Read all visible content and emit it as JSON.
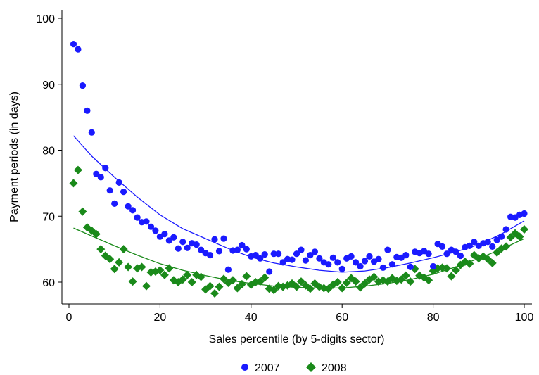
{
  "chart_data": {
    "type": "scatter",
    "title": "",
    "xlabel": "Sales percentile (by 5-digits sector)",
    "ylabel": "Payment periods (in days)",
    "xlim": [
      0,
      100
    ],
    "ylim": [
      57.5,
      101
    ],
    "xticks": [
      0,
      20,
      40,
      60,
      80,
      100
    ],
    "yticks": [
      60,
      70,
      80,
      90,
      100
    ],
    "xtick_labels": [
      "0",
      "20",
      "40",
      "60",
      "80",
      "100"
    ],
    "ytick_labels": [
      "60",
      "70",
      "80",
      "90",
      "100"
    ],
    "grid": false,
    "legend": "bottom",
    "series": [
      {
        "name": "2007",
        "marker": "circle",
        "color": "#1a1aff",
        "points": [
          [
            1,
            96.1
          ],
          [
            2,
            95.3
          ],
          [
            3,
            89.8
          ],
          [
            4,
            86.0
          ],
          [
            5,
            82.7
          ],
          [
            6,
            76.4
          ],
          [
            7,
            75.9
          ],
          [
            8,
            77.3
          ],
          [
            9,
            73.9
          ],
          [
            10,
            71.9
          ],
          [
            11,
            75.1
          ],
          [
            12,
            73.7
          ],
          [
            13,
            71.5
          ],
          [
            14,
            70.9
          ],
          [
            15,
            69.8
          ],
          [
            16,
            69.1
          ],
          [
            17,
            69.2
          ],
          [
            18,
            68.4
          ],
          [
            19,
            67.8
          ],
          [
            20,
            66.9
          ],
          [
            21,
            67.3
          ],
          [
            22,
            66.3
          ],
          [
            23,
            66.8
          ],
          [
            24,
            65.1
          ],
          [
            25,
            66.1
          ],
          [
            26,
            65.2
          ],
          [
            27,
            65.9
          ],
          [
            28,
            65.7
          ],
          [
            29,
            64.9
          ],
          [
            30,
            64.4
          ],
          [
            31,
            64.1
          ],
          [
            32,
            66.5
          ],
          [
            33,
            64.7
          ],
          [
            34,
            66.6
          ],
          [
            35,
            61.9
          ],
          [
            36,
            64.8
          ],
          [
            37,
            64.9
          ],
          [
            38,
            65.6
          ],
          [
            39,
            65.0
          ],
          [
            40,
            63.9
          ],
          [
            41,
            64.1
          ],
          [
            42,
            63.6
          ],
          [
            43,
            64.2
          ],
          [
            44,
            61.6
          ],
          [
            45,
            64.3
          ],
          [
            46,
            64.3
          ],
          [
            47,
            63.0
          ],
          [
            48,
            63.5
          ],
          [
            49,
            63.4
          ],
          [
            50,
            64.3
          ],
          [
            51,
            64.9
          ],
          [
            52,
            63.3
          ],
          [
            53,
            64.1
          ],
          [
            54,
            64.6
          ],
          [
            55,
            63.6
          ],
          [
            56,
            63.0
          ],
          [
            57,
            62.7
          ],
          [
            58,
            63.7
          ],
          [
            59,
            63.0
          ],
          [
            60,
            62.0
          ],
          [
            61,
            63.6
          ],
          [
            62,
            63.9
          ],
          [
            63,
            63.0
          ],
          [
            64,
            62.4
          ],
          [
            65,
            63.2
          ],
          [
            66,
            63.9
          ],
          [
            67,
            63.1
          ],
          [
            68,
            63.5
          ],
          [
            69,
            62.2
          ],
          [
            70,
            64.9
          ],
          [
            71,
            62.7
          ],
          [
            72,
            63.8
          ],
          [
            73,
            63.7
          ],
          [
            74,
            64.1
          ],
          [
            75,
            62.3
          ],
          [
            76,
            64.6
          ],
          [
            77,
            64.4
          ],
          [
            78,
            64.7
          ],
          [
            79,
            64.3
          ],
          [
            80,
            62.4
          ],
          [
            81,
            65.8
          ],
          [
            82,
            65.4
          ],
          [
            83,
            64.3
          ],
          [
            84,
            64.9
          ],
          [
            85,
            64.6
          ],
          [
            86,
            64.0
          ],
          [
            87,
            65.3
          ],
          [
            88,
            65.5
          ],
          [
            89,
            66.1
          ],
          [
            90,
            65.5
          ],
          [
            91,
            65.9
          ],
          [
            92,
            66.1
          ],
          [
            93,
            65.4
          ],
          [
            94,
            66.4
          ],
          [
            95,
            66.9
          ],
          [
            96,
            68.0
          ],
          [
            97,
            69.9
          ],
          [
            98,
            69.8
          ],
          [
            99,
            70.2
          ],
          [
            100,
            70.4
          ]
        ],
        "fit_points": [
          [
            1,
            82.2
          ],
          [
            5,
            79.1
          ],
          [
            10,
            75.9
          ],
          [
            15,
            72.9
          ],
          [
            20,
            70.2
          ],
          [
            25,
            68.1
          ],
          [
            30,
            66.6
          ],
          [
            35,
            65.1
          ],
          [
            40,
            63.8
          ],
          [
            45,
            62.9
          ],
          [
            50,
            62.3
          ],
          [
            55,
            61.8
          ],
          [
            60,
            61.5
          ],
          [
            65,
            61.7
          ],
          [
            70,
            62.2
          ],
          [
            75,
            62.9
          ],
          [
            80,
            63.7
          ],
          [
            85,
            64.6
          ],
          [
            90,
            65.7
          ],
          [
            95,
            67.3
          ],
          [
            100,
            69.3
          ]
        ]
      },
      {
        "name": "2008",
        "marker": "diamond",
        "color": "#1a8a1a",
        "points": [
          [
            1,
            75.0
          ],
          [
            2,
            77.0
          ],
          [
            3,
            70.7
          ],
          [
            4,
            68.3
          ],
          [
            5,
            67.8
          ],
          [
            6,
            67.3
          ],
          [
            7,
            65.0
          ],
          [
            8,
            64.0
          ],
          [
            9,
            63.5
          ],
          [
            10,
            62.0
          ],
          [
            11,
            63.0
          ],
          [
            12,
            65.0
          ],
          [
            13,
            62.3
          ],
          [
            14,
            60.1
          ],
          [
            15,
            62.1
          ],
          [
            16,
            62.3
          ],
          [
            17,
            59.4
          ],
          [
            18,
            61.5
          ],
          [
            19,
            61.6
          ],
          [
            20,
            61.8
          ],
          [
            21,
            61.1
          ],
          [
            22,
            62.1
          ],
          [
            23,
            60.3
          ],
          [
            24,
            60.0
          ],
          [
            25,
            60.4
          ],
          [
            26,
            61.1
          ],
          [
            27,
            60.0
          ],
          [
            28,
            61.1
          ],
          [
            29,
            60.8
          ],
          [
            30,
            58.9
          ],
          [
            31,
            59.4
          ],
          [
            32,
            58.3
          ],
          [
            33,
            59.3
          ],
          [
            34,
            60.5
          ],
          [
            35,
            59.9
          ],
          [
            36,
            60.3
          ],
          [
            37,
            59.1
          ],
          [
            38,
            59.7
          ],
          [
            39,
            60.9
          ],
          [
            40,
            59.6
          ],
          [
            41,
            60.0
          ],
          [
            42,
            60.1
          ],
          [
            43,
            60.7
          ],
          [
            44,
            59.0
          ],
          [
            45,
            58.8
          ],
          [
            46,
            59.4
          ],
          [
            47,
            59.3
          ],
          [
            48,
            59.5
          ],
          [
            49,
            59.8
          ],
          [
            50,
            59.3
          ],
          [
            51,
            60.1
          ],
          [
            52,
            59.5
          ],
          [
            53,
            59.0
          ],
          [
            54,
            59.8
          ],
          [
            55,
            59.3
          ],
          [
            56,
            59.1
          ],
          [
            57,
            59.0
          ],
          [
            58,
            59.6
          ],
          [
            59,
            60.0
          ],
          [
            60,
            59.1
          ],
          [
            61,
            59.9
          ],
          [
            62,
            60.6
          ],
          [
            63,
            60.1
          ],
          [
            64,
            59.2
          ],
          [
            65,
            59.8
          ],
          [
            66,
            60.4
          ],
          [
            67,
            60.8
          ],
          [
            68,
            60.1
          ],
          [
            69,
            60.3
          ],
          [
            70,
            60.1
          ],
          [
            71,
            60.6
          ],
          [
            72,
            60.2
          ],
          [
            73,
            60.4
          ],
          [
            74,
            61.0
          ],
          [
            75,
            60.1
          ],
          [
            76,
            62.0
          ],
          [
            77,
            61.0
          ],
          [
            78,
            60.7
          ],
          [
            79,
            60.3
          ],
          [
            80,
            61.7
          ],
          [
            81,
            62.1
          ],
          [
            82,
            62.2
          ],
          [
            83,
            62.1
          ],
          [
            84,
            60.9
          ],
          [
            85,
            61.8
          ],
          [
            86,
            62.6
          ],
          [
            87,
            63.1
          ],
          [
            88,
            62.8
          ],
          [
            89,
            64.1
          ],
          [
            90,
            63.6
          ],
          [
            91,
            63.9
          ],
          [
            92,
            63.5
          ],
          [
            93,
            62.9
          ],
          [
            94,
            64.5
          ],
          [
            95,
            65.1
          ],
          [
            96,
            65.4
          ],
          [
            97,
            66.8
          ],
          [
            98,
            67.4
          ],
          [
            99,
            66.9
          ],
          [
            100,
            68.0
          ]
        ],
        "fit_points": [
          [
            1,
            68.2
          ],
          [
            5,
            67.0
          ],
          [
            10,
            65.5
          ],
          [
            15,
            64.1
          ],
          [
            20,
            62.8
          ],
          [
            25,
            61.8
          ],
          [
            30,
            61.0
          ],
          [
            35,
            60.3
          ],
          [
            40,
            59.8
          ],
          [
            45,
            59.4
          ],
          [
            50,
            59.2
          ],
          [
            55,
            59.1
          ],
          [
            60,
            59.1
          ],
          [
            65,
            59.4
          ],
          [
            70,
            59.8
          ],
          [
            75,
            60.4
          ],
          [
            80,
            61.2
          ],
          [
            85,
            62.3
          ],
          [
            90,
            63.6
          ],
          [
            95,
            65.0
          ],
          [
            100,
            66.6
          ]
        ]
      }
    ]
  }
}
